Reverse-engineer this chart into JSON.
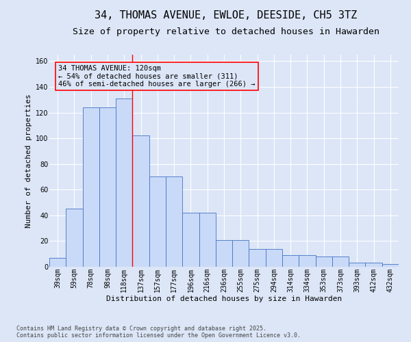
{
  "title": "34, THOMAS AVENUE, EWLOE, DEESIDE, CH5 3TZ",
  "subtitle": "Size of property relative to detached houses in Hawarden",
  "xlabel": "Distribution of detached houses by size in Hawarden",
  "ylabel": "Number of detached properties",
  "categories": [
    "39sqm",
    "59sqm",
    "78sqm",
    "98sqm",
    "118sqm",
    "137sqm",
    "157sqm",
    "177sqm",
    "196sqm",
    "216sqm",
    "236sqm",
    "255sqm",
    "275sqm",
    "294sqm",
    "314sqm",
    "334sqm",
    "353sqm",
    "373sqm",
    "393sqm",
    "412sqm",
    "432sqm"
  ],
  "bar_values": [
    7,
    45,
    124,
    124,
    131,
    102,
    70,
    70,
    42,
    42,
    21,
    21,
    14,
    14,
    9,
    9,
    8,
    8,
    3,
    3,
    2
  ],
  "bar_color": "#c9daf8",
  "bar_edge_color": "#4472c4",
  "background_color": "#dce6f7",
  "grid_color": "#ffffff",
  "annotation_text": "34 THOMAS AVENUE: 120sqm\n← 54% of detached houses are smaller (311)\n46% of semi-detached houses are larger (266) →",
  "marker_line_color": "red",
  "ylim": [
    0,
    165
  ],
  "yticks": [
    0,
    20,
    40,
    60,
    80,
    100,
    120,
    140,
    160
  ],
  "footnote": "Contains HM Land Registry data © Crown copyright and database right 2025.\nContains public sector information licensed under the Open Government Licence v3.0.",
  "title_fontsize": 11,
  "subtitle_fontsize": 9.5,
  "axis_label_fontsize": 8,
  "tick_fontsize": 7,
  "annotation_fontsize": 7.5,
  "footnote_fontsize": 6
}
